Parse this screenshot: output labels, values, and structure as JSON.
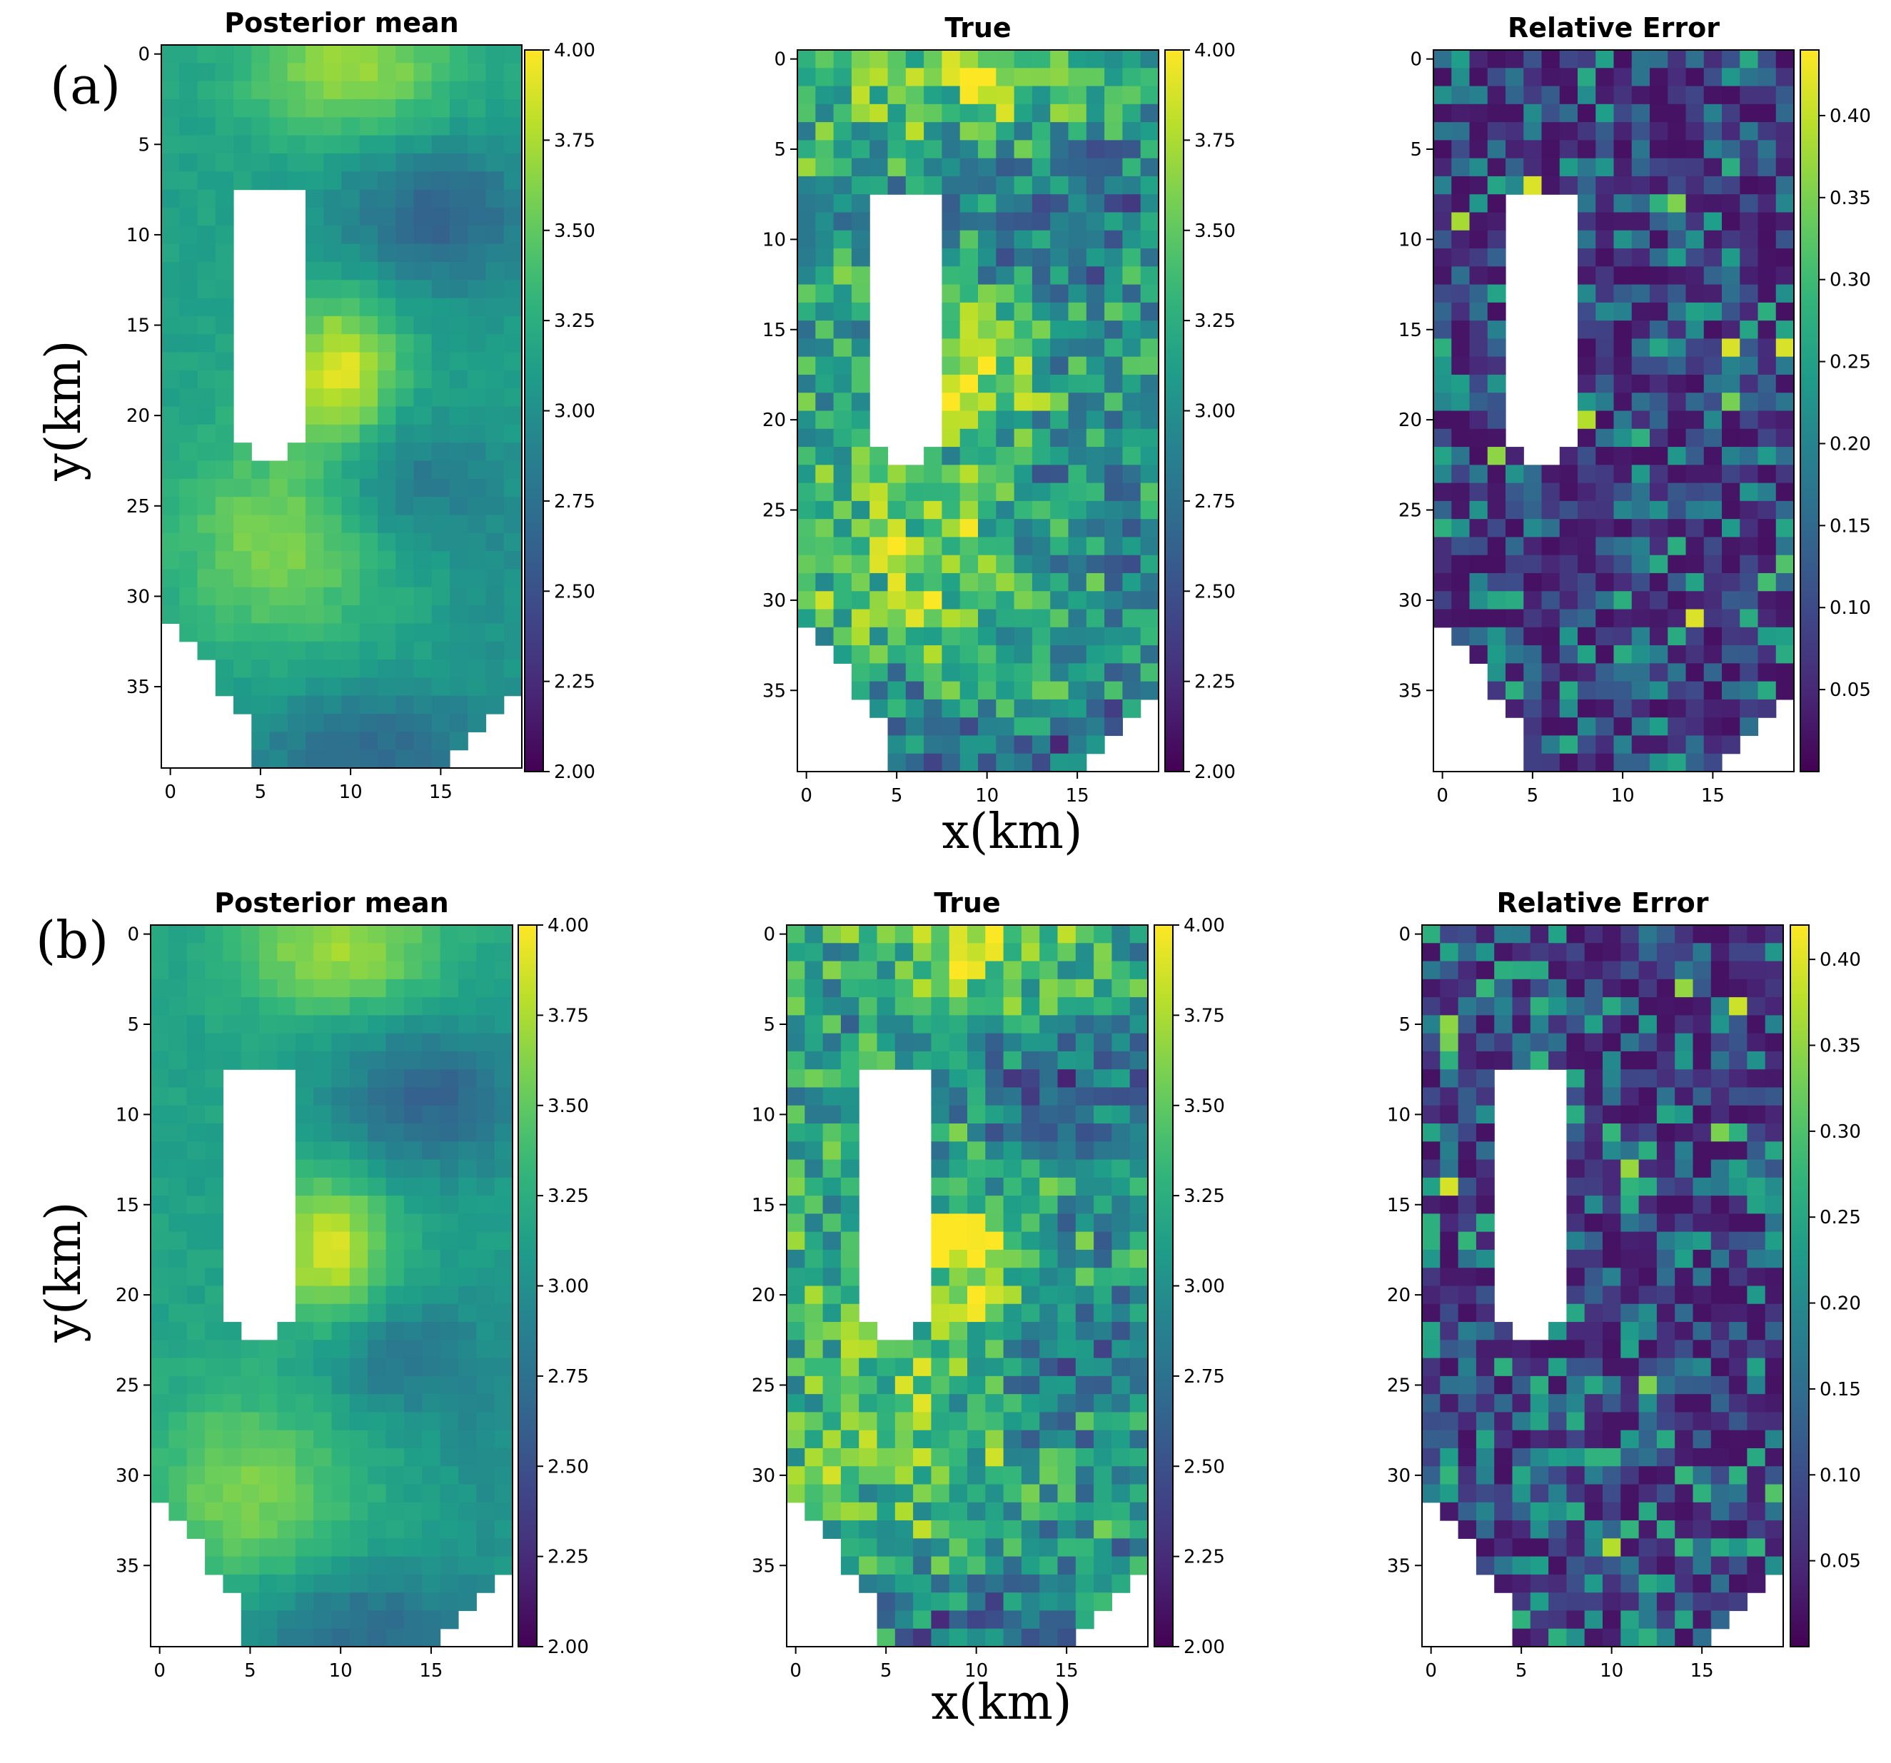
{
  "figure": {
    "rows": [
      {
        "label": "(a)",
        "x_label": "x(km)",
        "y_label": "y(km)"
      },
      {
        "label": "(b)",
        "x_label": "x(km)",
        "y_label": "y(km)"
      }
    ]
  },
  "colormap": {
    "name": "viridis",
    "stops": [
      "#440154",
      "#482878",
      "#3e4989",
      "#31688e",
      "#26828e",
      "#1f9e89",
      "#35b779",
      "#6ece58",
      "#b5de2b",
      "#fde725"
    ]
  },
  "chart_data": [
    {
      "type": "heatmap",
      "row": "(a)",
      "title": "Posterior mean",
      "grid": {
        "nx": 20,
        "ny": 40
      },
      "xlim": [
        -0.5,
        19.5
      ],
      "ylim": [
        39.5,
        -0.5
      ],
      "x_ticks": [
        0,
        5,
        10,
        15
      ],
      "y_ticks": [
        0,
        5,
        10,
        15,
        20,
        25,
        30,
        35
      ],
      "colorbar": {
        "min": 2.0,
        "max": 4.0,
        "ticks": [
          "2.00",
          "2.25",
          "2.50",
          "2.75",
          "3.00",
          "3.25",
          "3.50",
          "3.75",
          "4.00"
        ]
      },
      "xlabel": "",
      "ylabel": "y(km)"
    },
    {
      "type": "heatmap",
      "row": "(a)",
      "title": "True",
      "grid": {
        "nx": 20,
        "ny": 40
      },
      "xlim": [
        -0.5,
        19.5
      ],
      "ylim": [
        39.5,
        -0.5
      ],
      "x_ticks": [
        0,
        5,
        10,
        15
      ],
      "y_ticks": [
        0,
        5,
        10,
        15,
        20,
        25,
        30,
        35
      ],
      "colorbar": {
        "min": 2.0,
        "max": 4.0,
        "ticks": [
          "2.00",
          "2.25",
          "2.50",
          "2.75",
          "3.00",
          "3.25",
          "3.50",
          "3.75",
          "4.00"
        ]
      },
      "xlabel": "x(km)",
      "ylabel": ""
    },
    {
      "type": "heatmap",
      "row": "(a)",
      "title": "Relative Error",
      "grid": {
        "nx": 20,
        "ny": 40
      },
      "xlim": [
        -0.5,
        19.5
      ],
      "ylim": [
        39.5,
        -0.5
      ],
      "x_ticks": [
        0,
        5,
        10,
        15
      ],
      "y_ticks": [
        0,
        5,
        10,
        15,
        20,
        25,
        30,
        35
      ],
      "colorbar": {
        "min": 0.0,
        "max": 0.44,
        "ticks": [
          "0.05",
          "0.10",
          "0.15",
          "0.20",
          "0.25",
          "0.30",
          "0.35",
          "0.40"
        ]
      },
      "xlabel": "",
      "ylabel": ""
    },
    {
      "type": "heatmap",
      "row": "(b)",
      "title": "Posterior mean",
      "grid": {
        "nx": 20,
        "ny": 40
      },
      "xlim": [
        -0.5,
        19.5
      ],
      "ylim": [
        39.5,
        -0.5
      ],
      "x_ticks": [
        0,
        5,
        10,
        15
      ],
      "y_ticks": [
        0,
        5,
        10,
        15,
        20,
        25,
        30,
        35
      ],
      "colorbar": {
        "min": 2.0,
        "max": 4.0,
        "ticks": [
          "2.00",
          "2.25",
          "2.50",
          "2.75",
          "3.00",
          "3.25",
          "3.50",
          "3.75",
          "4.00"
        ]
      },
      "xlabel": "",
      "ylabel": "y(km)"
    },
    {
      "type": "heatmap",
      "row": "(b)",
      "title": "True",
      "grid": {
        "nx": 20,
        "ny": 40
      },
      "xlim": [
        -0.5,
        19.5
      ],
      "ylim": [
        39.5,
        -0.5
      ],
      "x_ticks": [
        0,
        5,
        10,
        15
      ],
      "y_ticks": [
        0,
        5,
        10,
        15,
        20,
        25,
        30,
        35
      ],
      "colorbar": {
        "min": 2.0,
        "max": 4.0,
        "ticks": [
          "2.00",
          "2.25",
          "2.50",
          "2.75",
          "3.00",
          "3.25",
          "3.50",
          "3.75",
          "4.00"
        ]
      },
      "xlabel": "x(km)",
      "ylabel": ""
    },
    {
      "type": "heatmap",
      "row": "(b)",
      "title": "Relative Error",
      "grid": {
        "nx": 20,
        "ny": 40
      },
      "xlim": [
        -0.5,
        19.5
      ],
      "ylim": [
        39.5,
        -0.5
      ],
      "x_ticks": [
        0,
        5,
        10,
        15
      ],
      "y_ticks": [
        0,
        5,
        10,
        15,
        20,
        25,
        30,
        35
      ],
      "colorbar": {
        "min": 0.0,
        "max": 0.42,
        "ticks": [
          "0.05",
          "0.10",
          "0.15",
          "0.20",
          "0.25",
          "0.30",
          "0.35",
          "0.40"
        ]
      },
      "xlabel": "",
      "ylabel": ""
    }
  ]
}
